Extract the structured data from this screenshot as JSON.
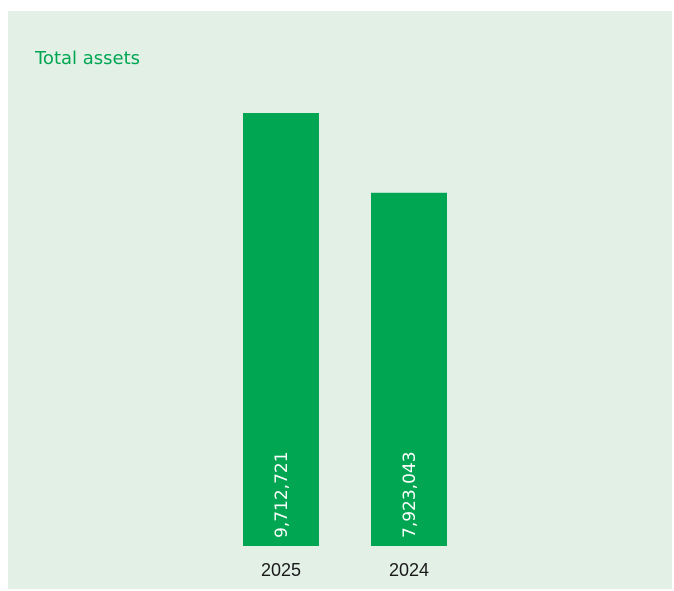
{
  "colors": {
    "panel_background": "#e2f0e6",
    "title": "#00a651",
    "bar": "#00a651",
    "bar_label": "#ffffff",
    "tick_label": "#1a1a1a"
  },
  "chart_data": {
    "type": "bar",
    "title": "Total assets",
    "xlabel": "",
    "ylabel": "",
    "categories": [
      "2025",
      "2024"
    ],
    "values": [
      9712721,
      7923043
    ],
    "data_labels": [
      "9,712,721",
      "7,923,043"
    ],
    "ylim": [
      0,
      10000000
    ],
    "grid": false,
    "legend": "none"
  }
}
